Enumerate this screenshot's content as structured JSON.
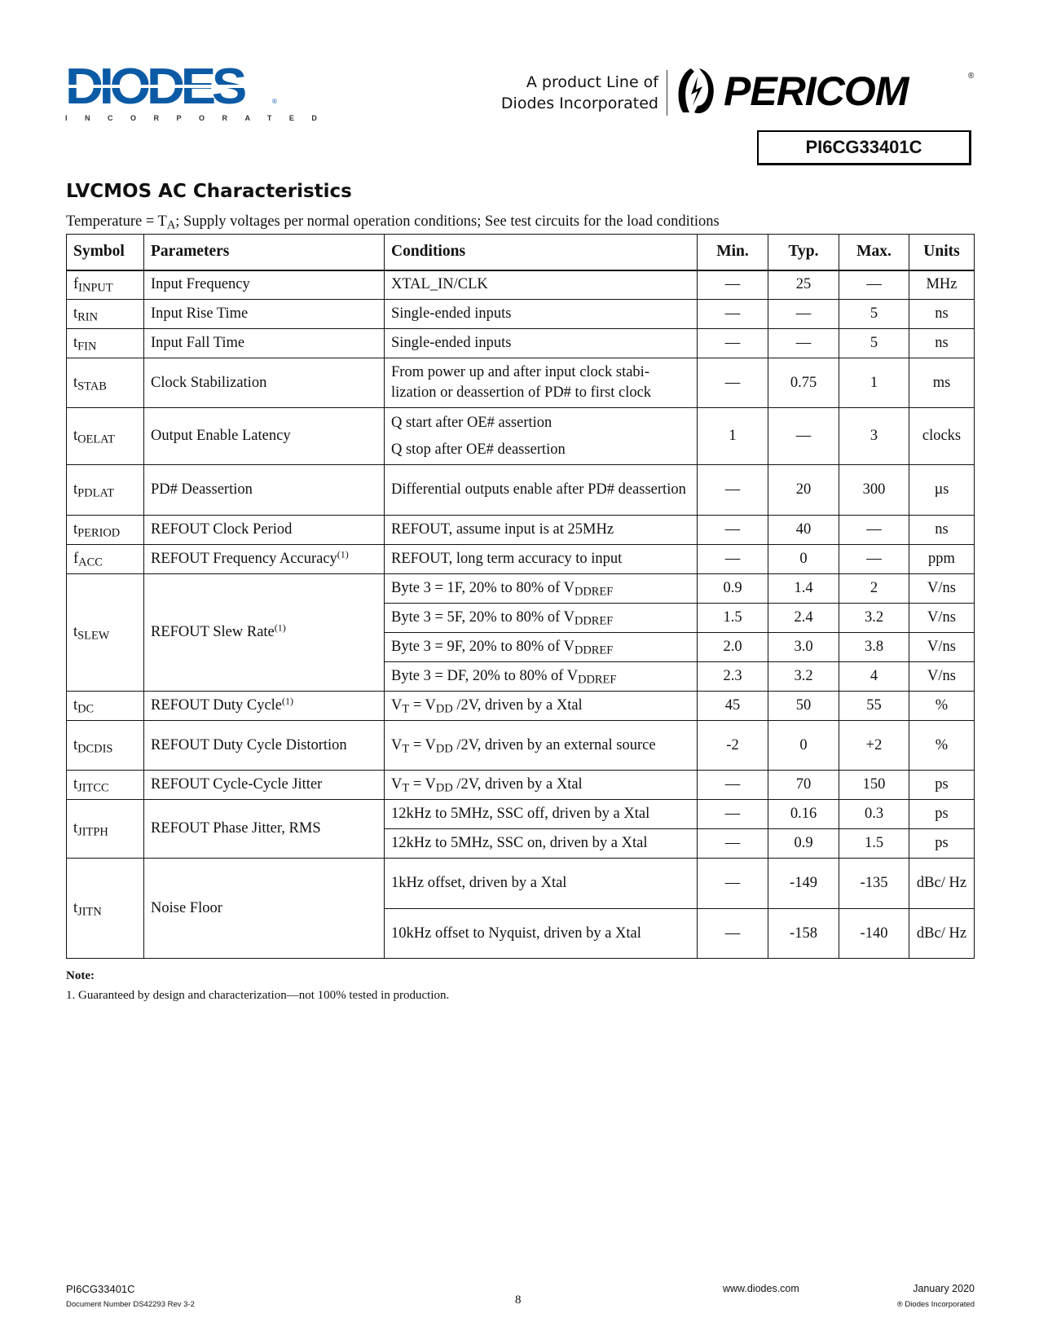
{
  "header": {
    "diodes_logo": {
      "word": "DIODES",
      "tagline": "INCORPORATED"
    },
    "product_line": [
      "A product Line of",
      "Diodes Incorporated"
    ],
    "pericom_logo": {
      "word": "PERICOM",
      "mark": "®"
    },
    "part_number": "PI6CG33401C"
  },
  "section": {
    "title": "LVCMOS AC Characteristics",
    "conditions_prefix": "Temperature = T",
    "conditions_sub": "A",
    "conditions_suffix": "; Supply voltages per normal operation conditions; See test circuits for the load conditions"
  },
  "table": {
    "headers": [
      "Symbol",
      "Parameters",
      "Conditions",
      "Min.",
      "Typ.",
      "Max.",
      "Units"
    ],
    "rows": [
      {
        "symbol": [
          "f",
          "INPUT"
        ],
        "parameter": "Input Frequency",
        "lines": [
          {
            "condition": [
              [
                {
                  "t": "XTAL_IN/CLK"
                }
              ]
            ],
            "min": "—",
            "typ": "25",
            "max": "—",
            "units": "MHz"
          }
        ]
      },
      {
        "symbol": [
          "t",
          "RIN"
        ],
        "parameter": "Input Rise Time",
        "lines": [
          {
            "condition": [
              [
                {
                  "t": "Single-ended inputs"
                }
              ]
            ],
            "min": "—",
            "typ": "—",
            "max": "5",
            "units": "ns"
          }
        ]
      },
      {
        "symbol": [
          "t",
          "FIN"
        ],
        "parameter": "Input Fall Time",
        "lines": [
          {
            "condition": [
              [
                {
                  "t": "Single-ended inputs"
                }
              ]
            ],
            "min": "—",
            "typ": "—",
            "max": "5",
            "units": "ns"
          }
        ]
      },
      {
        "symbol": [
          "t",
          "STAB"
        ],
        "parameter": "Clock Stabilization",
        "lines": [
          {
            "condition": [
              [
                {
                  "t": "From power up and after input clock stabi-lization or deassertion of PD# to first clock"
                }
              ]
            ],
            "min": "—",
            "typ": "0.75",
            "max": "1",
            "units": "ms"
          }
        ]
      },
      {
        "symbol": [
          "t",
          "OELAT"
        ],
        "parameter": "Output Enable Latency",
        "lines": [
          {
            "condition": [
              [
                {
                  "t": "Q start after OE# assertion"
                }
              ],
              [
                {
                  "t": "Q stop after OE# deassertion"
                }
              ]
            ],
            "min": "1",
            "typ": "—",
            "max": "3",
            "units": "clocks"
          }
        ]
      },
      {
        "symbol": [
          "t",
          "PDLAT"
        ],
        "parameter": "PD# Deassertion",
        "lines": [
          {
            "condition": [
              [
                {
                  "t": "Differential outputs enable after PD# deassertion"
                }
              ]
            ],
            "min": "—",
            "typ": "20",
            "max": "300",
            "units": "µs"
          }
        ]
      },
      {
        "symbol": [
          "t",
          "PERIOD"
        ],
        "parameter": "REFOUT Clock Period",
        "lines": [
          {
            "condition": [
              [
                {
                  "t": "REFOUT, assume input is at 25MHz"
                }
              ]
            ],
            "min": "—",
            "typ": "40",
            "max": "—",
            "units": "ns"
          }
        ]
      },
      {
        "symbol": [
          "f",
          "ACC"
        ],
        "parameter": "REFOUT Frequency Accuracy",
        "parameter_sup": "(1)",
        "lines": [
          {
            "condition": [
              [
                {
                  "t": "REFOUT, long term accuracy to input"
                }
              ]
            ],
            "min": "—",
            "typ": "0",
            "max": "—",
            "units": "ppm"
          }
        ]
      },
      {
        "symbol": [
          "t",
          "SLEW"
        ],
        "parameter": "REFOUT Slew Rate",
        "parameter_sup": "(1)",
        "lines": [
          {
            "condition": [
              [
                {
                  "t": "Byte 3 = 1F, 20% to 80% of V"
                },
                {
                  "sub": "DDREF"
                }
              ]
            ],
            "min": "0.9",
            "typ": "1.4",
            "max": "2",
            "units": "V/ns"
          },
          {
            "condition": [
              [
                {
                  "t": "Byte 3 = 5F, 20% to 80% of V"
                },
                {
                  "sub": "DDREF"
                }
              ]
            ],
            "min": "1.5",
            "typ": "2.4",
            "max": "3.2",
            "units": "V/ns"
          },
          {
            "condition": [
              [
                {
                  "t": "Byte 3 = 9F, 20% to 80% of V"
                },
                {
                  "sub": "DDREF"
                }
              ]
            ],
            "min": "2.0",
            "typ": "3.0",
            "max": "3.8",
            "units": "V/ns"
          },
          {
            "condition": [
              [
                {
                  "t": "Byte 3 = DF, 20% to 80% of V"
                },
                {
                  "sub": "DDREF"
                }
              ]
            ],
            "min": "2.3",
            "typ": "3.2",
            "max": "4",
            "units": "V/ns"
          }
        ]
      },
      {
        "symbol": [
          "t",
          "DC"
        ],
        "parameter": "REFOUT Duty Cycle",
        "parameter_sup": "(1)",
        "lines": [
          {
            "condition": [
              [
                {
                  "t": "V"
                },
                {
                  "sub": "T"
                },
                {
                  "t": " = V"
                },
                {
                  "sub": "DD"
                },
                {
                  "t": " /2V, driven by a Xtal"
                }
              ]
            ],
            "min": "45",
            "typ": "50",
            "max": "55",
            "units": "%"
          }
        ]
      },
      {
        "symbol": [
          "t",
          "DCDIS"
        ],
        "parameter": "REFOUT Duty Cycle Distortion",
        "lines": [
          {
            "condition": [
              [
                {
                  "t": "V"
                },
                {
                  "sub": "T"
                },
                {
                  "t": " = V"
                },
                {
                  "sub": "DD"
                },
                {
                  "t": " /2V, driven by an external source"
                }
              ]
            ],
            "min": "-2",
            "typ": "0",
            "max": "+2",
            "units": "%"
          }
        ]
      },
      {
        "symbol": [
          "t",
          "JITCC"
        ],
        "parameter": "REFOUT Cycle-Cycle Jitter",
        "lines": [
          {
            "condition": [
              [
                {
                  "t": "V"
                },
                {
                  "sub": "T"
                },
                {
                  "t": " = V"
                },
                {
                  "sub": "DD"
                },
                {
                  "t": " /2V, driven by a Xtal"
                }
              ]
            ],
            "min": "—",
            "typ": "70",
            "max": "150",
            "units": "ps"
          }
        ]
      },
      {
        "symbol": [
          "t",
          "JITPH"
        ],
        "parameter": "REFOUT Phase Jitter, RMS",
        "lines": [
          {
            "condition": [
              [
                {
                  "t": "12kHz to 5MHz, SSC off, driven by a Xtal"
                }
              ]
            ],
            "min": "—",
            "typ": "0.16",
            "max": "0.3",
            "units": "ps"
          },
          {
            "condition": [
              [
                {
                  "t": "12kHz to 5MHz, SSC on, driven by a Xtal"
                }
              ]
            ],
            "min": "—",
            "typ": "0.9",
            "max": "1.5",
            "units": "ps"
          }
        ]
      },
      {
        "symbol": [
          "t",
          "JITN"
        ],
        "parameter": "Noise Floor",
        "lines": [
          {
            "condition": [
              [
                {
                  "t": "1kHz offset, driven by a Xtal"
                }
              ]
            ],
            "min": "—",
            "typ": "-149",
            "max": "-135",
            "units": "dBc/ Hz"
          },
          {
            "condition": [
              [
                {
                  "t": "10kHz offset to Nyquist, driven by a Xtal"
                }
              ]
            ],
            "min": "—",
            "typ": "-158",
            "max": "-140",
            "units": "dBc/ Hz"
          }
        ]
      }
    ]
  },
  "notes": {
    "label": "Note:",
    "items": [
      "1. Guaranteed by design and characterization—not 100% tested in production."
    ]
  },
  "footer": {
    "part_number": "PI6CG33401C",
    "document_number": "Document Number DS42293 Rev 3-2",
    "page_number": "8",
    "website": "www.diodes.com",
    "date": "January 2020",
    "copyright": "® Diodes Incorporated"
  }
}
